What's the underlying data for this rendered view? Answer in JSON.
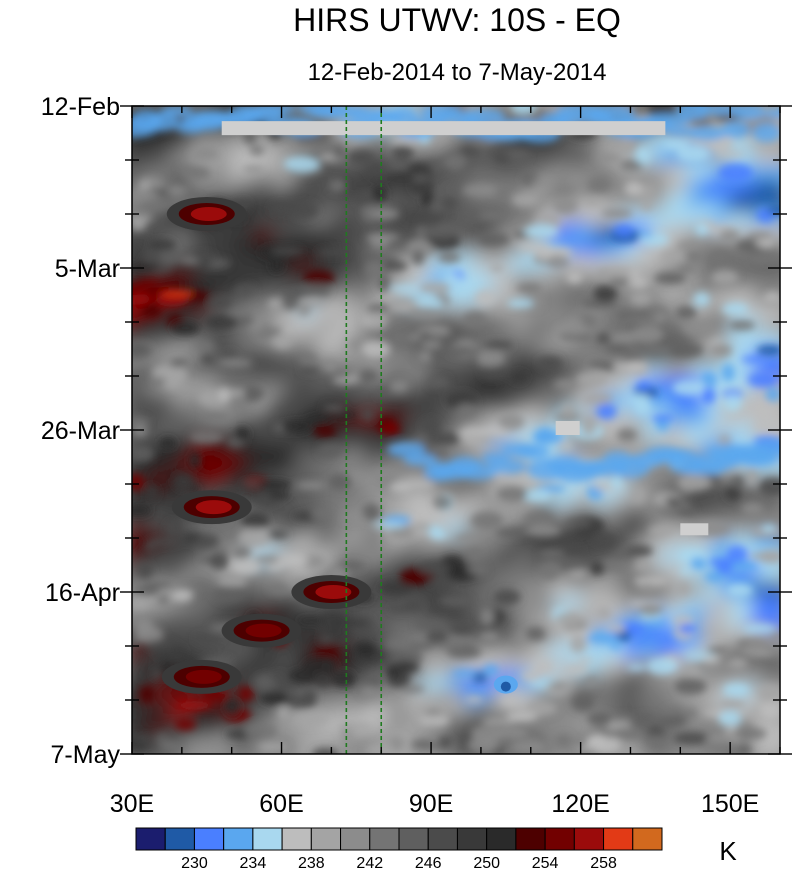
{
  "chart_data": {
    "type": "heatmap",
    "title": "HIRS UTWV: 10S - EQ",
    "subtitle": "12-Feb-2014 to 7-May-2014",
    "x_axis": {
      "range": [
        30,
        160
      ],
      "ticks": [
        {
          "value": 30,
          "label": "30E"
        },
        {
          "value": 60,
          "label": "60E"
        },
        {
          "value": 90,
          "label": "90E"
        },
        {
          "value": 120,
          "label": "120E"
        },
        {
          "value": 150,
          "label": "150E"
        }
      ],
      "minor_step": 10
    },
    "y_axis": {
      "range": [
        "2014-02-12",
        "2014-05-07"
      ],
      "direction": "top-to-bottom",
      "ticks": [
        {
          "value": "2014-02-12",
          "label": "12-Feb"
        },
        {
          "value": "2014-03-05",
          "label": "5-Mar"
        },
        {
          "value": "2014-03-26",
          "label": "26-Mar"
        },
        {
          "value": "2014-04-16",
          "label": "16-Apr"
        },
        {
          "value": "2014-05-07",
          "label": "7-May"
        }
      ],
      "minor_step_days": 7
    },
    "reference_lines": [
      {
        "longitude": 73,
        "color": "#1f7a1f",
        "style": "dashed"
      },
      {
        "longitude": 80,
        "color": "#1f7a1f",
        "style": "dashed"
      }
    ],
    "colorbar": {
      "unit": "K",
      "levels": [
        228,
        230,
        232,
        234,
        236,
        238,
        240,
        242,
        244,
        246,
        248,
        250,
        252,
        254,
        256,
        258,
        260
      ],
      "labels": [
        "230",
        "234",
        "238",
        "242",
        "246",
        "250",
        "254",
        "258"
      ],
      "colors": [
        "#1b1d6e",
        "#1f5aa6",
        "#4a7fff",
        "#5aa7ef",
        "#a9d8ef",
        "#bdbdbd",
        "#a4a4a4",
        "#8c8c8c",
        "#747474",
        "#5f5f5f",
        "#4b4b4b",
        "#393939",
        "#2a2a2a",
        "#4d0000",
        "#720000",
        "#9b0b0b",
        "#e23a16",
        "#d2691e"
      ]
    },
    "missing_color": "#cfcfcf",
    "features": [
      {
        "type": "moist_band",
        "lon_start": 30,
        "lon_end": 160,
        "date": "2014-02-14",
        "level": 232
      },
      {
        "type": "dry_patch",
        "lon": 45,
        "date": "2014-02-26",
        "level": 256
      },
      {
        "type": "dry_patch",
        "lon": 46,
        "date": "2014-04-05",
        "level": 256
      },
      {
        "type": "dry_patch",
        "lon": 70,
        "date": "2014-04-16",
        "level": 256
      },
      {
        "type": "dry_patch",
        "lon": 56,
        "date": "2014-04-21",
        "level": 255
      },
      {
        "type": "dry_patch",
        "lon": 44,
        "date": "2014-04-27",
        "level": 255
      },
      {
        "type": "moist_band",
        "lon_start": 85,
        "lon_end": 160,
        "date": "2014-03-30",
        "level": 233
      },
      {
        "type": "moist_spot",
        "lon": 105,
        "date": "2014-04-28",
        "level": 229
      }
    ]
  }
}
